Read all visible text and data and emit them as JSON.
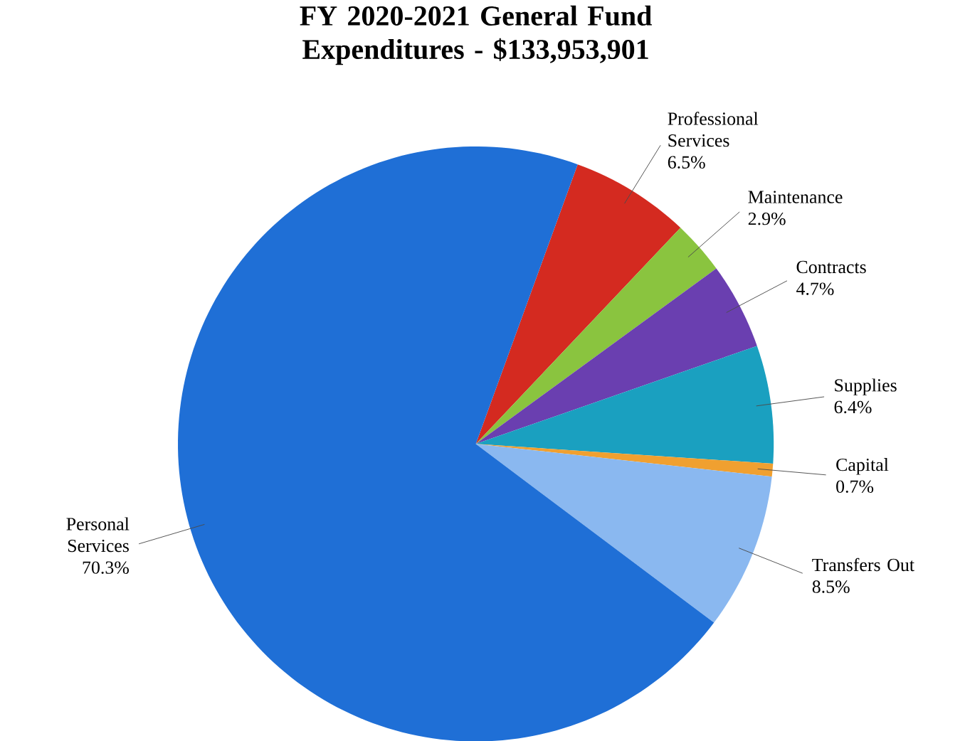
{
  "chart_data": {
    "type": "pie",
    "title": "FY 2020-2021 General Fund Expenditures - $133,953,901",
    "categories": [
      "Professional Services",
      "Maintenance",
      "Contracts",
      "Supplies",
      "Capital",
      "Transfers Out",
      "Personal Services"
    ],
    "values": [
      6.5,
      2.9,
      4.7,
      6.4,
      0.7,
      8.5,
      70.3
    ],
    "value_labels": [
      "6.5%",
      "2.9%",
      "4.7%",
      "6.4%",
      "0.7%",
      "8.5%",
      "70.3%"
    ],
    "colors": [
      "#d42a20",
      "#8ac43f",
      "#6a3fb0",
      "#1aa0c0",
      "#f0a030",
      "#8ab8f0",
      "#1f6fd6"
    ]
  }
}
